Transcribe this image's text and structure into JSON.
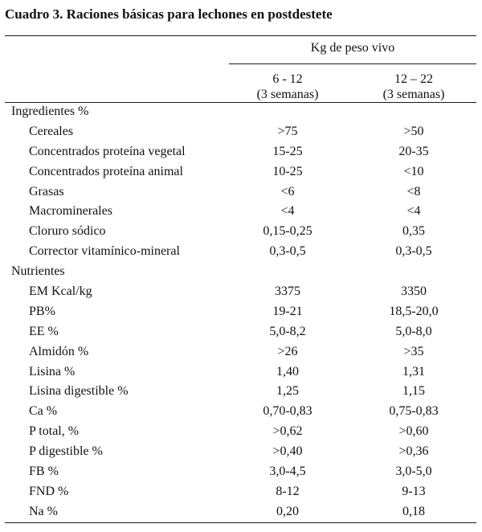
{
  "title": "Cuadro 3. Raciones básicas para lechones en postdestete",
  "header": {
    "group": "Kg de peso vivo",
    "columns": [
      {
        "range": "6 - 12",
        "duration": "(3 semanas)"
      },
      {
        "range": "12 – 22",
        "duration": "(3 semanas)"
      }
    ]
  },
  "sections": [
    {
      "label": "Ingredientes %",
      "rows": [
        {
          "label": "Cereales",
          "v1": ">75",
          "v2": ">50"
        },
        {
          "label": "Concentrados proteína vegetal",
          "v1": "15-25",
          "v2": "20-35"
        },
        {
          "label": "Concentrados proteína animal",
          "v1": "10-25",
          "v2": "<10"
        },
        {
          "label": "Grasas",
          "v1": "<6",
          "v2": "<8"
        },
        {
          "label": "Macrominerales",
          "v1": "<4",
          "v2": "<4"
        },
        {
          "label": "Cloruro sódico",
          "v1": "0,15-0,25",
          "v2": "0,35"
        },
        {
          "label": "Corrector vitamínico-mineral",
          "v1": "0,3-0,5",
          "v2": "0,3-0,5"
        }
      ]
    },
    {
      "label": "Nutrientes",
      "rows": [
        {
          "label": "EM Kcal/kg",
          "v1": "3375",
          "v2": "3350"
        },
        {
          "label": "PB%",
          "v1": "19-21",
          "v2": "18,5-20,0"
        },
        {
          "label": "EE %",
          "v1": "5,0-8,2",
          "v2": "5,0-8,0"
        },
        {
          "label": "Almidón %",
          "v1": ">26",
          "v2": ">35"
        },
        {
          "label": "Lisina %",
          "v1": "1,40",
          "v2": "1,31"
        },
        {
          "label": "Lisina digestible %",
          "v1": "1,25",
          "v2": "1,15"
        },
        {
          "label": "Ca %",
          "v1": "0,70-0,83",
          "v2": "0,75-0,83"
        },
        {
          "label": "P total, %",
          "v1": ">0,62",
          "v2": ">0,60"
        },
        {
          "label": "P digestible %",
          "v1": ">0,40",
          "v2": ">0,36"
        },
        {
          "label": "FB %",
          "v1": "3,0-4,5",
          "v2": "3,0-5,0"
        },
        {
          "label": "FND %",
          "v1": "8-12",
          "v2": "9-13"
        },
        {
          "label": "Na %",
          "v1": "0,20",
          "v2": "0,18"
        }
      ]
    }
  ]
}
